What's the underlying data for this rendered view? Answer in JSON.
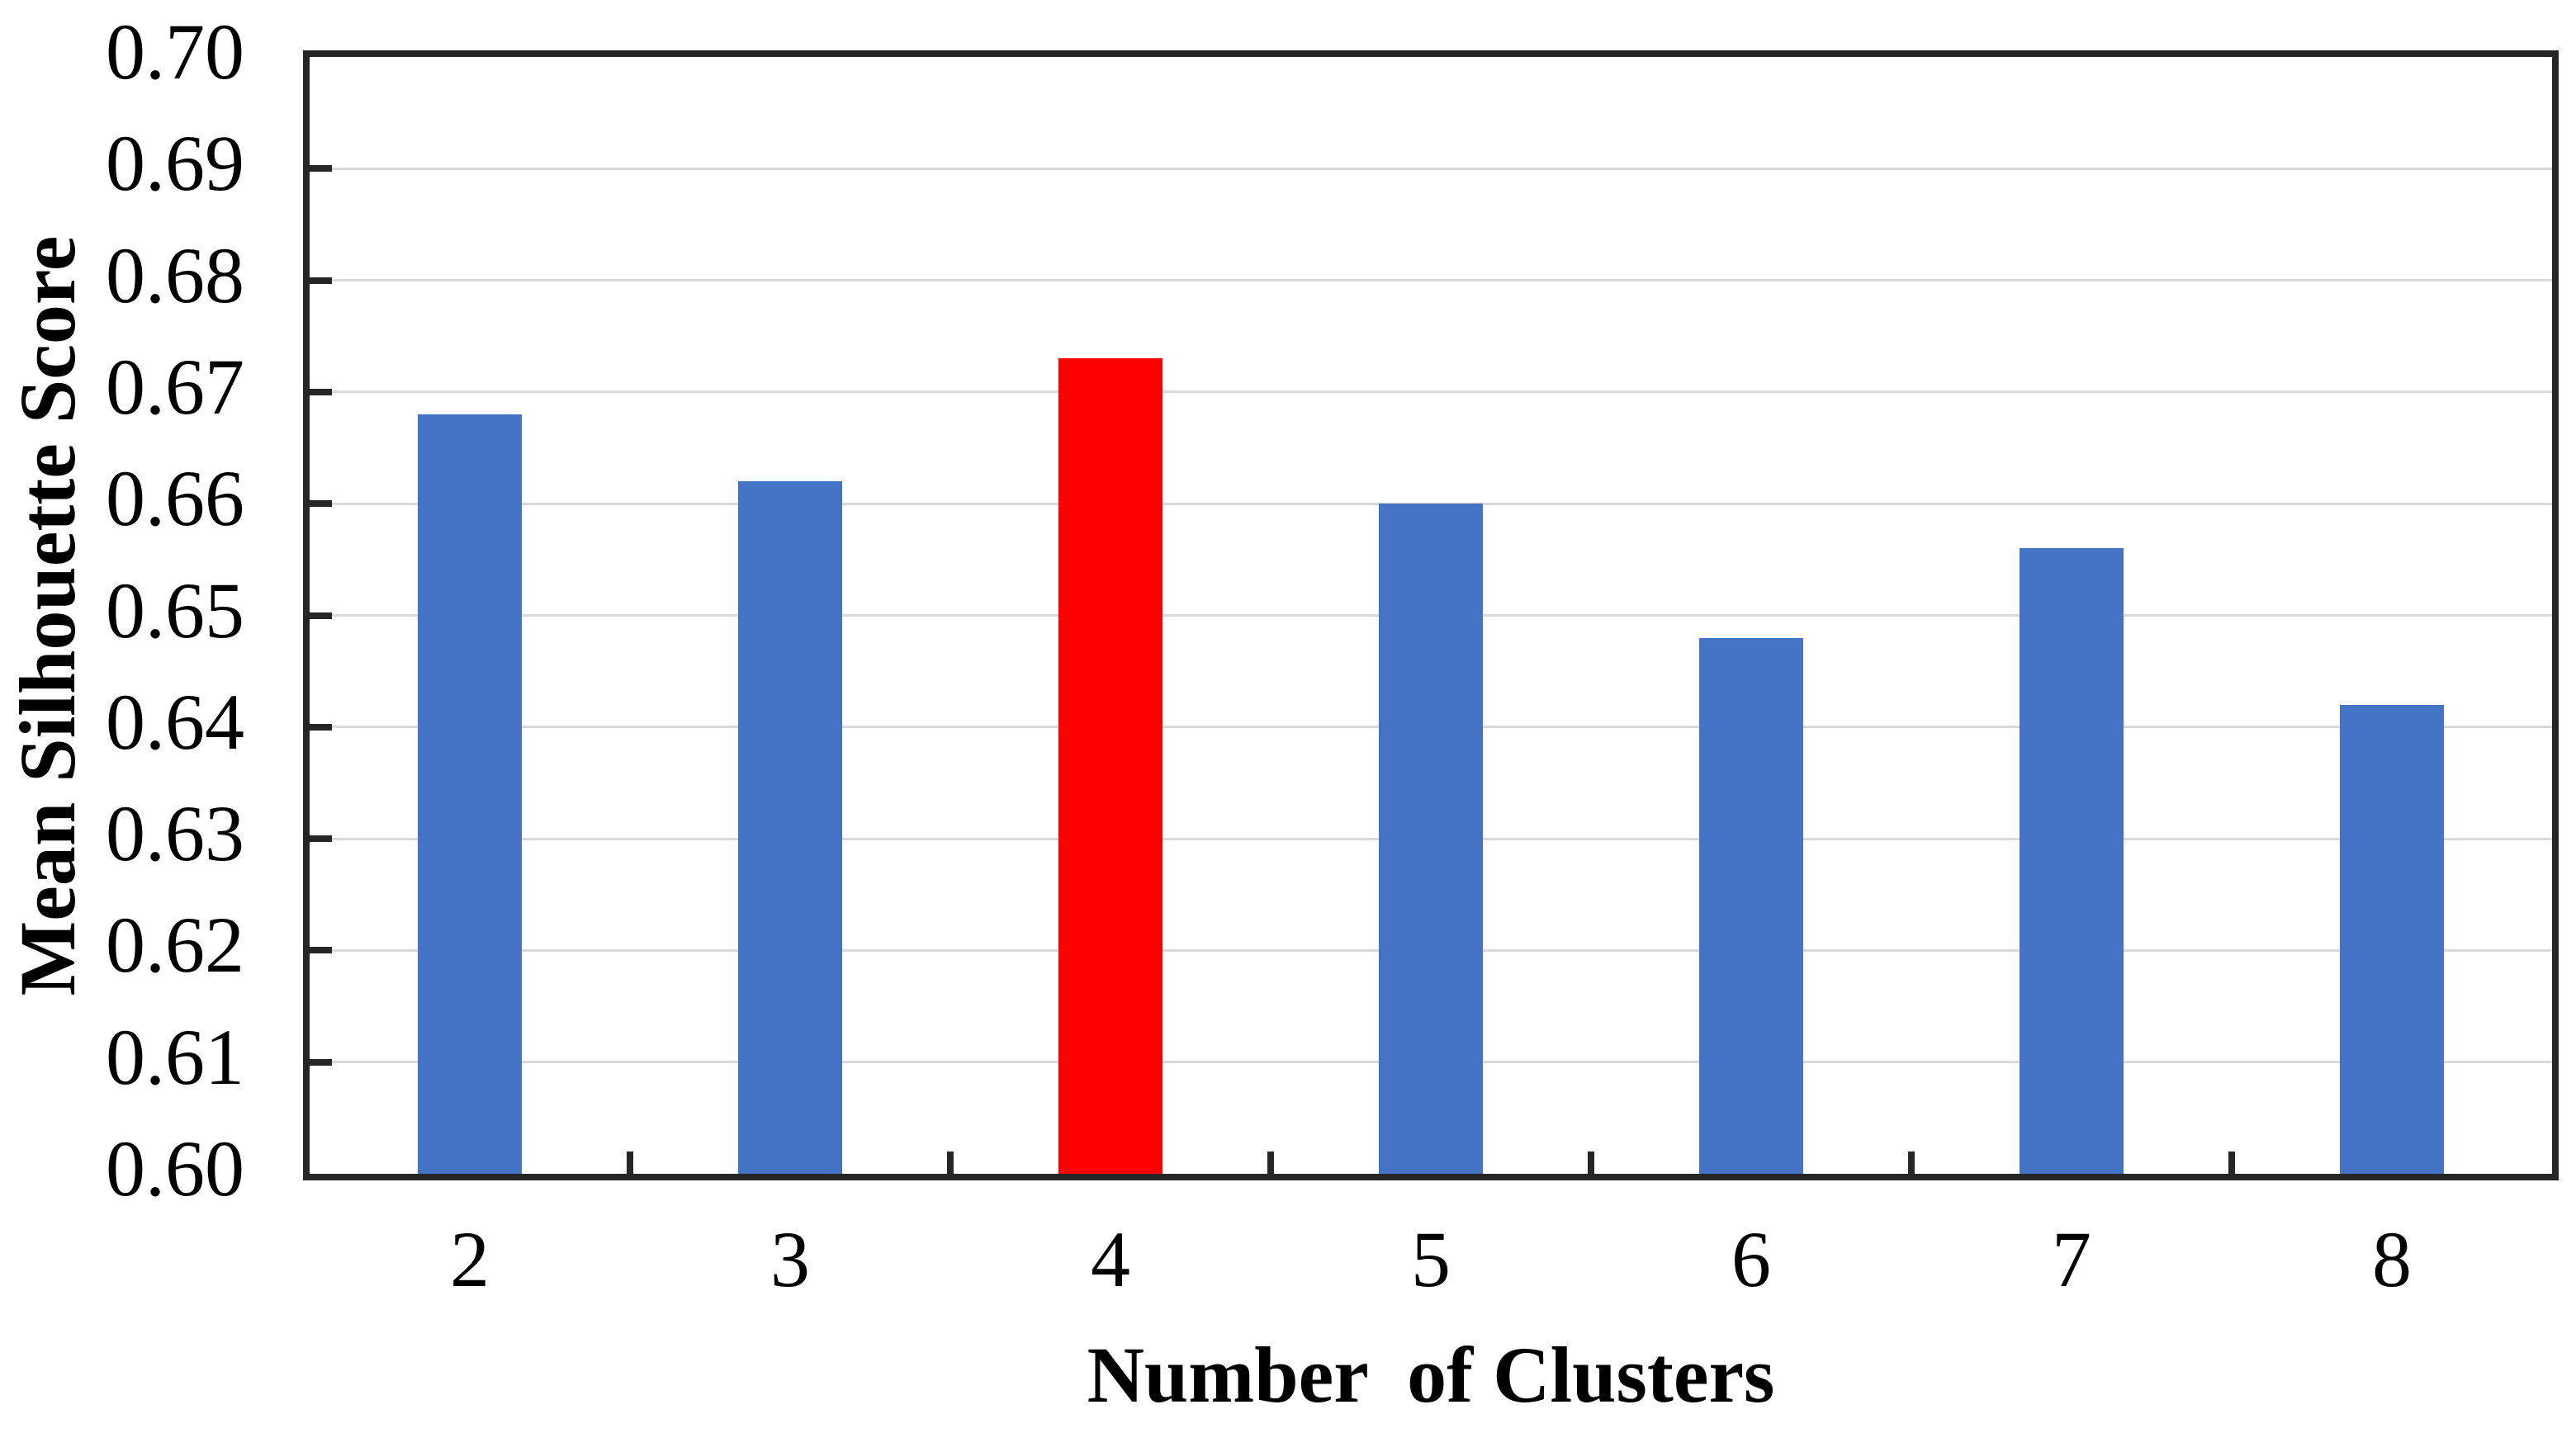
{
  "chart_data": {
    "type": "bar",
    "title": "",
    "xlabel": "Number  of Clusters",
    "ylabel": "Mean Silhouette Score",
    "categories": [
      "2",
      "3",
      "4",
      "5",
      "6",
      "7",
      "8"
    ],
    "values": [
      0.668,
      0.662,
      0.673,
      0.66,
      0.648,
      0.656,
      0.642
    ],
    "highlight_index": 2,
    "highlight_category": "4",
    "ylim": [
      0.6,
      0.7
    ],
    "ytick_step": 0.01,
    "ytick_labels": [
      "0.60",
      "0.61",
      "0.62",
      "0.63",
      "0.64",
      "0.65",
      "0.66",
      "0.67",
      "0.68",
      "0.69",
      "0.70"
    ],
    "grid": "horizontal",
    "legend": "none",
    "colors": {
      "bar": "#4472C4",
      "highlight": "#FF0000",
      "axis": "#262626",
      "gridline": "#D9D9D9",
      "text": "#000000",
      "background": "#FFFFFF"
    }
  }
}
